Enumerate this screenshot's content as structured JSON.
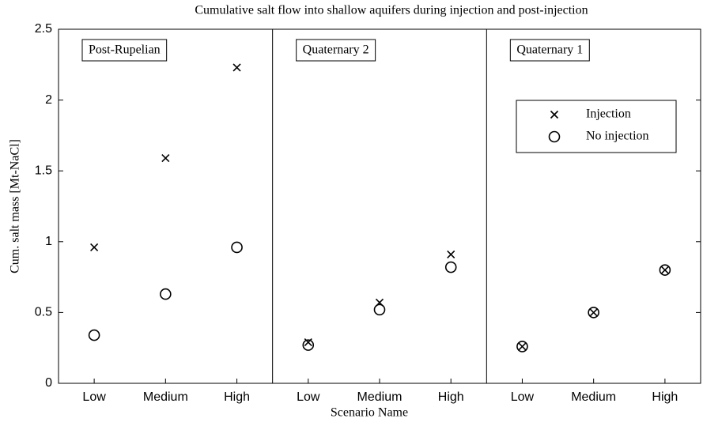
{
  "chart_data": {
    "type": "scatter",
    "title": "Cumulative salt flow into shallow aquifers during injection and post-injection",
    "x_label": "Scenario Name",
    "y_label": "Cum. salt mass [Mt-NaCl]",
    "panels": [
      "Post-Rupelian",
      "Quaternary 2",
      "Quaternary 1"
    ],
    "categories": [
      "Low",
      "Medium",
      "High",
      "Low",
      "Medium",
      "High",
      "Low",
      "Medium",
      "High"
    ],
    "series": [
      {
        "name": "Injection",
        "marker": "x",
        "color": "#000000",
        "values": [
          0.96,
          1.59,
          2.23,
          0.29,
          0.57,
          0.91,
          0.26,
          0.5,
          0.8
        ]
      },
      {
        "name": "No injection",
        "marker": "o",
        "color": "#000000",
        "values": [
          0.34,
          0.63,
          0.96,
          0.27,
          0.52,
          0.82,
          0.26,
          0.5,
          0.8
        ]
      }
    ],
    "ylim": [
      0,
      2.5
    ],
    "yticks": [
      0,
      0.5,
      1,
      1.5,
      2,
      2.5
    ],
    "legend": "upper right",
    "grid": false
  }
}
